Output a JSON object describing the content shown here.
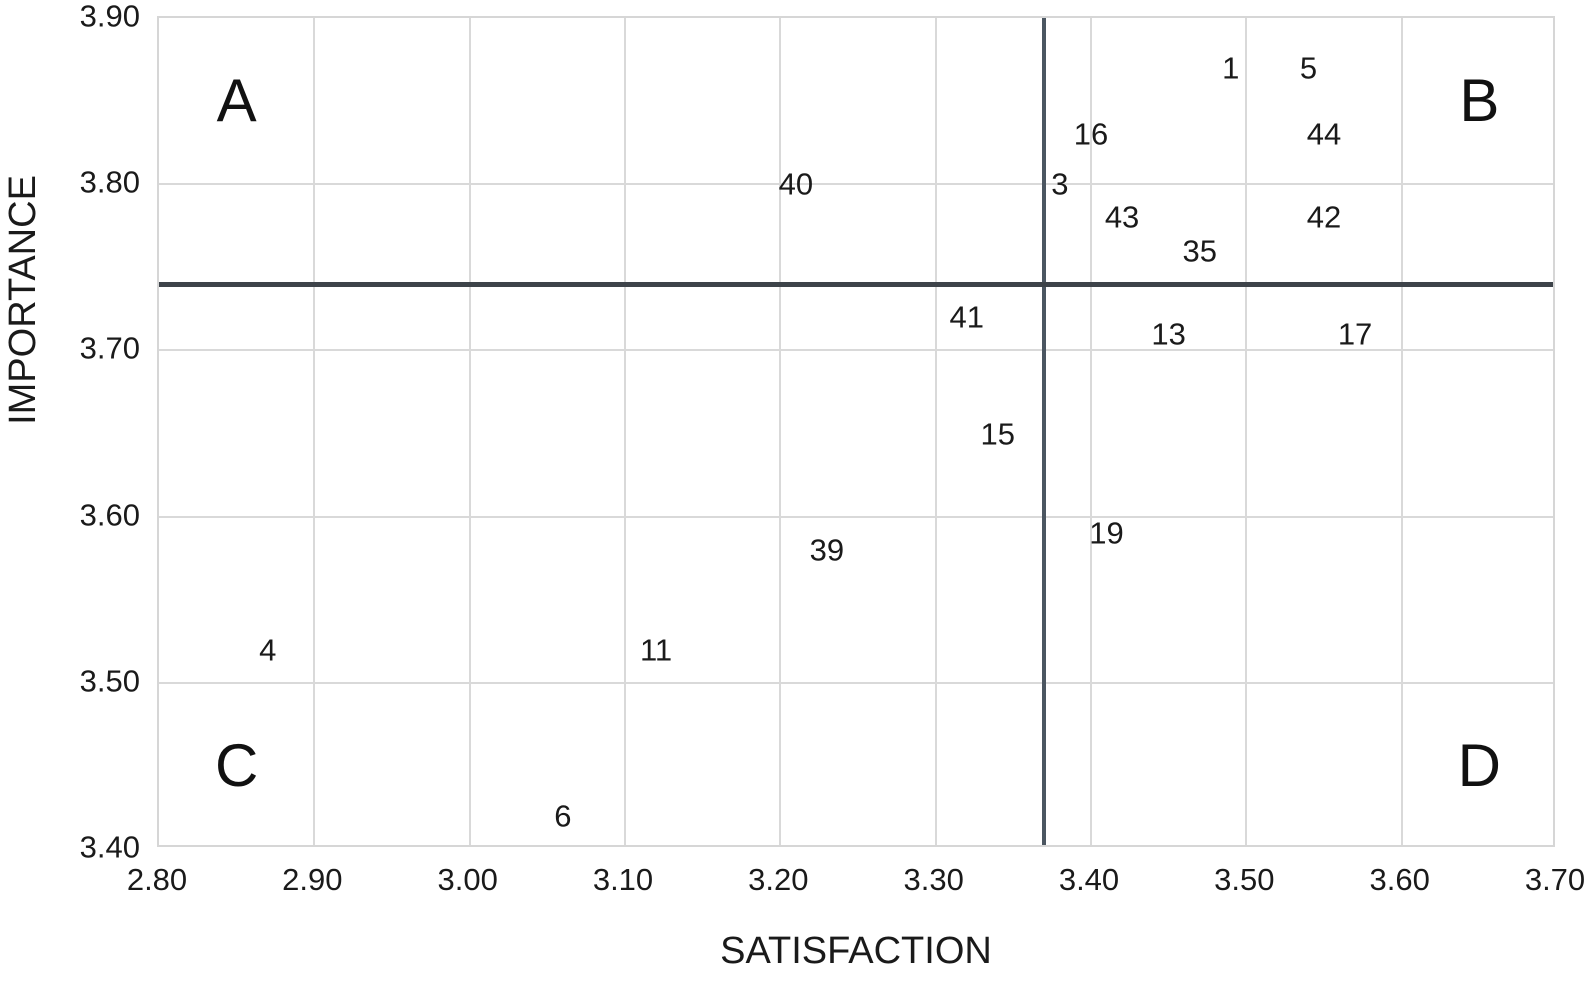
{
  "colors": {
    "grid": "#d9d9d9",
    "crosshair_vertical": "#4b5661",
    "crosshair_horizontal": "#3d4349",
    "text": "#1a1a1a",
    "background": "#ffffff"
  },
  "chart_data": {
    "type": "scatter",
    "title": "",
    "xlabel": "SATISFACTION",
    "ylabel": "IMPORTANCE",
    "xlim": [
      2.8,
      3.7
    ],
    "ylim": [
      3.4,
      3.9
    ],
    "x_ticks": [
      "2.80",
      "2.90",
      "3.00",
      "3.10",
      "3.20",
      "3.30",
      "3.40",
      "3.50",
      "3.60",
      "3.70"
    ],
    "y_ticks": [
      "3.90",
      "3.80",
      "3.70",
      "3.60",
      "3.50",
      "3.40"
    ],
    "grid": true,
    "legend": "none",
    "crosshair": {
      "x": 3.37,
      "y": 3.74
    },
    "quadrant_labels": [
      {
        "label": "A",
        "x": 2.85,
        "y": 3.85
      },
      {
        "label": "B",
        "x": 3.65,
        "y": 3.85
      },
      {
        "label": "C",
        "x": 2.85,
        "y": 3.45
      },
      {
        "label": "D",
        "x": 3.65,
        "y": 3.45
      }
    ],
    "points": [
      {
        "label": "1",
        "x": 3.49,
        "y": 3.87
      },
      {
        "label": "5",
        "x": 3.54,
        "y": 3.87
      },
      {
        "label": "16",
        "x": 3.4,
        "y": 3.83
      },
      {
        "label": "44",
        "x": 3.55,
        "y": 3.83
      },
      {
        "label": "40",
        "x": 3.21,
        "y": 3.8
      },
      {
        "label": "3",
        "x": 3.38,
        "y": 3.8
      },
      {
        "label": "43",
        "x": 3.42,
        "y": 3.78
      },
      {
        "label": "42",
        "x": 3.55,
        "y": 3.78
      },
      {
        "label": "35",
        "x": 3.47,
        "y": 3.76
      },
      {
        "label": "41",
        "x": 3.32,
        "y": 3.72
      },
      {
        "label": "13",
        "x": 3.45,
        "y": 3.71
      },
      {
        "label": "17",
        "x": 3.57,
        "y": 3.71
      },
      {
        "label": "15",
        "x": 3.34,
        "y": 3.65
      },
      {
        "label": "19",
        "x": 3.41,
        "y": 3.59
      },
      {
        "label": "39",
        "x": 3.23,
        "y": 3.58
      },
      {
        "label": "4",
        "x": 2.87,
        "y": 3.52
      },
      {
        "label": "11",
        "x": 3.12,
        "y": 3.52
      },
      {
        "label": "6",
        "x": 3.06,
        "y": 3.42
      }
    ]
  }
}
